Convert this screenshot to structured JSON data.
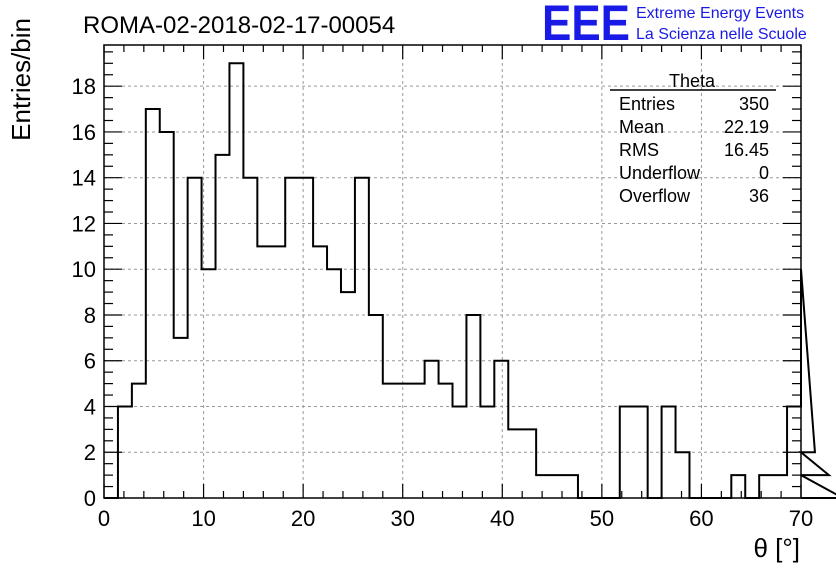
{
  "title": "ROMA-02-2018-02-17-00054",
  "logo": {
    "mark": "EEE",
    "line1": "Extreme Energy Events",
    "line2": "La Scienza nelle Scuole",
    "color": "#1a1ae6"
  },
  "stats": {
    "name": "Theta",
    "rows": [
      {
        "label": "Entries",
        "value": "350"
      },
      {
        "label": "Mean",
        "value": "22.19"
      },
      {
        "label": "RMS",
        "value": "16.45"
      },
      {
        "label": "Underflow",
        "value": "0"
      },
      {
        "label": "Overflow",
        "value": "36"
      }
    ]
  },
  "chart_data": {
    "type": "bar",
    "style": "step-histogram",
    "xlabel": "θ [°]",
    "ylabel": "Entries/bin",
    "xlim": [
      0,
      70
    ],
    "ylim": [
      0,
      19.8
    ],
    "grid": true,
    "legend_position": "top-right",
    "bin_width": 1.4,
    "x_ticks": [
      0,
      10,
      20,
      30,
      40,
      50,
      60,
      70
    ],
    "y_ticks": [
      0,
      2,
      4,
      6,
      8,
      10,
      12,
      14,
      16,
      18
    ],
    "bin_edges_start": 0,
    "values": [
      0,
      4,
      5,
      17,
      16,
      7,
      14,
      10,
      15,
      19,
      14,
      11,
      11,
      14,
      14,
      11,
      10,
      9,
      14,
      8,
      5,
      5,
      5,
      6,
      5,
      4,
      8,
      4,
      6,
      3,
      3,
      1,
      1,
      1,
      0,
      0,
      0,
      4,
      4,
      0,
      4,
      2,
      0,
      0,
      0,
      1,
      0,
      1,
      1,
      4,
      10,
      2,
      1,
      0
    ]
  }
}
